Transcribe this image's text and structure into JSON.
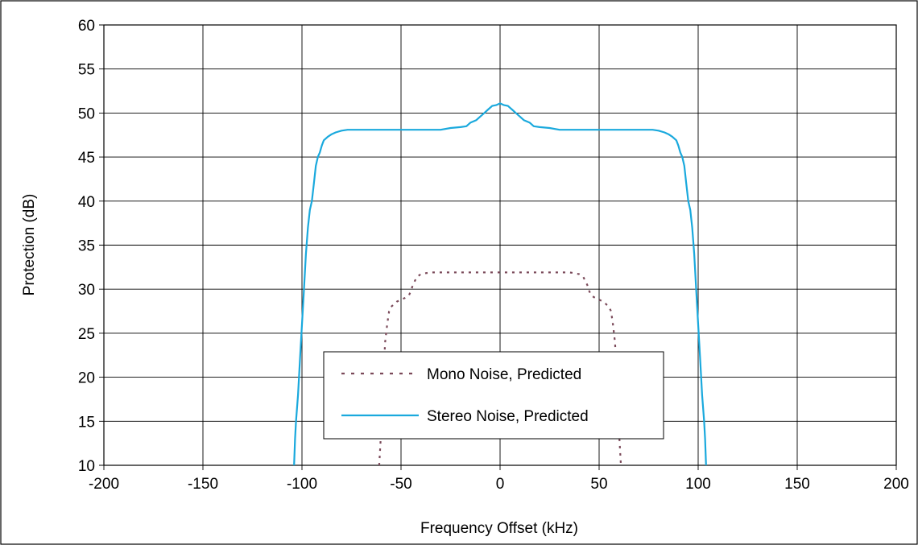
{
  "chart_data": {
    "type": "line",
    "title": "",
    "xlabel": "Frequency Offset (kHz)",
    "ylabel": "Protection (dB)",
    "xlim": [
      -200,
      200
    ],
    "ylim": [
      10,
      60
    ],
    "x_ticks": [
      -200,
      -150,
      -100,
      -50,
      0,
      50,
      100,
      150,
      200
    ],
    "y_ticks": [
      10,
      15,
      20,
      25,
      30,
      35,
      40,
      45,
      50,
      55,
      60
    ],
    "grid": true,
    "legend_position": "center-lower",
    "series": [
      {
        "name": "Mono Noise, Predicted",
        "style": "dotted",
        "color": "#7b4a5a",
        "x": [
          -61,
          -60,
          -59,
          -58,
          -57,
          -56,
          -55,
          -54,
          -53,
          -52,
          -50,
          -48,
          -46,
          -45,
          -44,
          -42,
          -40,
          -38,
          -35,
          -30,
          -20,
          -10,
          0,
          10,
          20,
          30,
          35,
          38,
          40,
          42,
          44,
          45,
          46,
          48,
          50,
          52,
          53,
          54,
          55,
          56,
          57,
          58,
          59,
          60,
          61
        ],
        "y": [
          10,
          14,
          20,
          24,
          26,
          27.5,
          28,
          28.2,
          28.4,
          28.6,
          28.8,
          29,
          29.3,
          29.8,
          30.5,
          31.4,
          31.7,
          31.8,
          31.9,
          31.9,
          31.9,
          31.9,
          31.9,
          31.9,
          31.9,
          31.9,
          31.9,
          31.8,
          31.7,
          31.4,
          30.5,
          29.8,
          29.3,
          29,
          28.8,
          28.6,
          28.4,
          28.2,
          28,
          27.5,
          26,
          24,
          20,
          14,
          10
        ]
      },
      {
        "name": "Stereo Noise, Predicted",
        "style": "solid",
        "color": "#1aa9dd",
        "x": [
          -104,
          -103.5,
          -103,
          -102,
          -101,
          -100,
          -99,
          -98,
          -97,
          -96,
          -95,
          -94,
          -93,
          -92,
          -91,
          -90,
          -89,
          -87,
          -85,
          -83,
          -80,
          -77,
          -75,
          -70,
          -60,
          -50,
          -40,
          -30,
          -25,
          -20,
          -17,
          -15,
          -12,
          -10,
          -8,
          -6,
          -4,
          -2,
          0,
          2,
          4,
          6,
          8,
          10,
          12,
          15,
          17,
          20,
          25,
          30,
          40,
          50,
          60,
          70,
          75,
          77,
          80,
          83,
          85,
          87,
          89,
          90,
          91,
          92,
          93,
          94,
          95,
          96,
          97,
          98,
          99,
          100,
          101,
          102,
          103,
          103.5,
          104
        ],
        "y": [
          10,
          13,
          15,
          18,
          22,
          26,
          30,
          34,
          37,
          39,
          40,
          42,
          44,
          45,
          45.5,
          46.3,
          46.9,
          47.3,
          47.6,
          47.8,
          48,
          48.1,
          48.1,
          48.1,
          48.1,
          48.1,
          48.1,
          48.1,
          48.3,
          48.4,
          48.5,
          48.9,
          49.2,
          49.6,
          50,
          50.4,
          50.8,
          50.9,
          51.1,
          50.9,
          50.8,
          50.4,
          50,
          49.6,
          49.2,
          48.9,
          48.5,
          48.4,
          48.3,
          48.1,
          48.1,
          48.1,
          48.1,
          48.1,
          48.1,
          48.1,
          48,
          47.8,
          47.6,
          47.3,
          46.9,
          46.3,
          45.5,
          45,
          44,
          42,
          40,
          39,
          37,
          34,
          30,
          26,
          22,
          18,
          15,
          13,
          10
        ]
      }
    ]
  }
}
